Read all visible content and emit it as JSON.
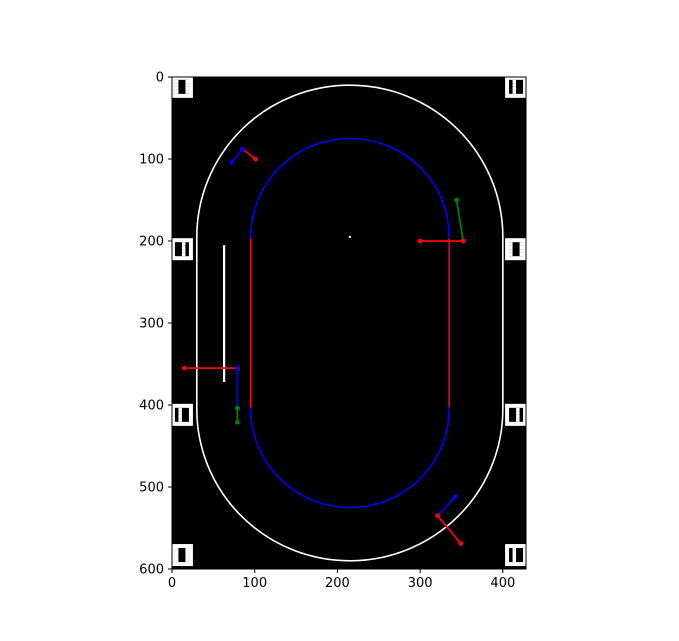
{
  "chart_data": {
    "type": "image",
    "title": "",
    "xlabel": "",
    "ylabel": "",
    "xlim": [
      0,
      428
    ],
    "ylim": [
      600,
      0
    ],
    "x_ticks": [
      0,
      100,
      200,
      300,
      400
    ],
    "y_ticks": [
      0,
      100,
      200,
      300,
      400,
      500,
      600
    ],
    "background": "#000000",
    "outer_track": {
      "color": "#ffffff",
      "x_left": 30,
      "x_right": 400,
      "y_top": 10,
      "y_bottom": 590,
      "radius": 185
    },
    "inner_track": {
      "color": "#0000ff",
      "x_left": 95,
      "x_right": 335,
      "y_top": 75,
      "y_bottom": 525,
      "radius": 120
    },
    "inner_straights": {
      "color": "#ff0000",
      "x": [
        95,
        335
      ],
      "y_range": [
        197,
        403
      ]
    },
    "start_line": {
      "color": "#ffffff",
      "x": 63,
      "y_range": [
        205,
        372
      ]
    },
    "center_point": {
      "color": "#ffffff",
      "x": 215,
      "y": 195
    },
    "markers": [
      {
        "x": 12,
        "y": 12
      },
      {
        "x": 416,
        "y": 12
      },
      {
        "x": 12,
        "y": 210
      },
      {
        "x": 416,
        "y": 210
      },
      {
        "x": 12,
        "y": 412
      },
      {
        "x": 416,
        "y": 412
      },
      {
        "x": 12,
        "y": 583
      },
      {
        "x": 416,
        "y": 583
      }
    ],
    "segments": [
      {
        "color": "#ff0000",
        "points": [
          [
            85,
            88
          ],
          [
            101,
            100
          ]
        ]
      },
      {
        "color": "#0000ff",
        "points": [
          [
            72,
            104
          ],
          [
            85,
            88
          ]
        ]
      },
      {
        "color": "#008000",
        "points": [
          [
            344,
            150
          ],
          [
            352,
            200
          ]
        ]
      },
      {
        "color": "#ff0000",
        "points": [
          [
            300,
            200
          ],
          [
            352,
            200
          ]
        ]
      },
      {
        "color": "#ff0000",
        "points": [
          [
            15,
            355
          ],
          [
            79,
            355
          ]
        ]
      },
      {
        "color": "#0000ff",
        "points": [
          [
            79,
            355
          ],
          [
            79,
            404
          ]
        ]
      },
      {
        "color": "#008000",
        "points": [
          [
            79,
            404
          ],
          [
            79,
            421
          ]
        ]
      },
      {
        "color": "#0000ff",
        "points": [
          [
            342,
            512
          ],
          [
            321,
            535
          ]
        ]
      },
      {
        "color": "#ff0000",
        "points": [
          [
            321,
            535
          ],
          [
            349,
            569
          ]
        ]
      }
    ]
  }
}
